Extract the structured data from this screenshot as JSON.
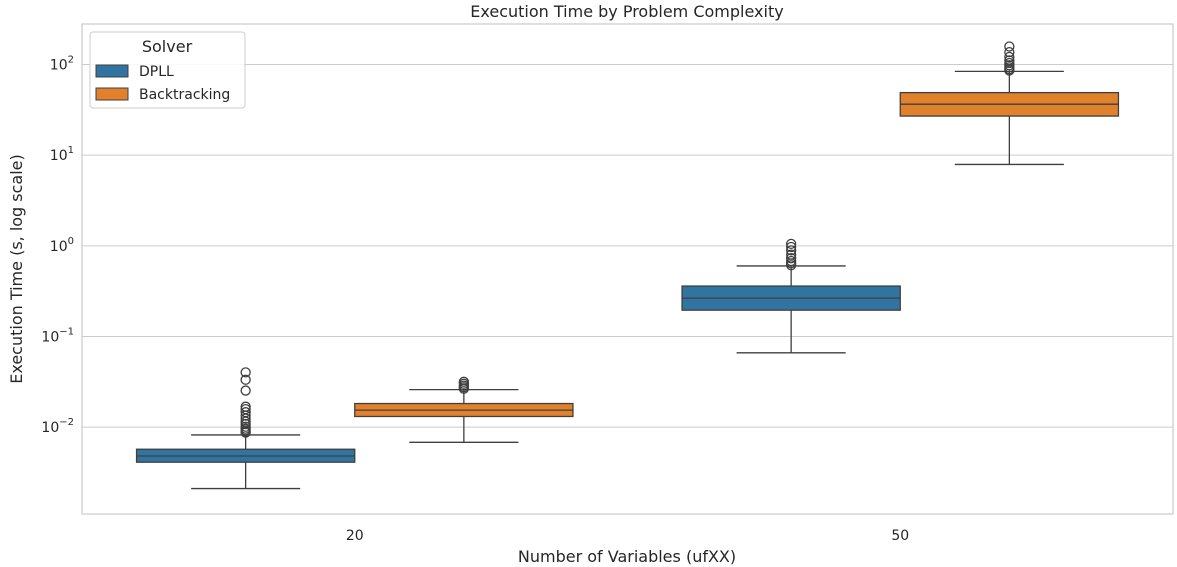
{
  "chart_data": {
    "type": "box",
    "title": "Execution Time by Problem Complexity",
    "xlabel": "Number of Variables (ufXX)",
    "ylabel": "Execution Time (s, log scale)",
    "yscale": "log",
    "ylim": [
      0.0011,
      280
    ],
    "yticks": [
      {
        "value": 0.01,
        "base": "10",
        "exp": "−2"
      },
      {
        "value": 0.1,
        "base": "10",
        "exp": "−1"
      },
      {
        "value": 1,
        "base": "10",
        "exp": "0"
      },
      {
        "value": 10,
        "base": "10",
        "exp": "1"
      },
      {
        "value": 100,
        "base": "10",
        "exp": "2"
      }
    ],
    "categories": [
      "20",
      "50"
    ],
    "grid": "horizontal",
    "legend": {
      "title": "Solver",
      "placement": "top-left"
    },
    "series": [
      {
        "name": "DPLL",
        "color": "#3274a1",
        "boxes": [
          {
            "category": "20",
            "whisker_low": 0.0021,
            "q1": 0.0041,
            "median": 0.0048,
            "q3": 0.0057,
            "whisker_high": 0.0082,
            "outliers": [
              0.0087,
              0.0089,
              0.0092,
              0.0096,
              0.0101,
              0.0108,
              0.0115,
              0.0124,
              0.0134,
              0.0146,
              0.0158,
              0.0168,
              0.0253,
              0.0333,
              0.0402
            ]
          },
          {
            "category": "50",
            "whisker_low": 0.066,
            "q1": 0.195,
            "median": 0.265,
            "q3": 0.36,
            "whisker_high": 0.6,
            "outliers": [
              0.61,
              0.64,
              0.68,
              0.73,
              0.8,
              0.89,
              0.97,
              1.05
            ]
          }
        ]
      },
      {
        "name": "Backtracking",
        "color": "#e1812c",
        "boxes": [
          {
            "category": "20",
            "whisker_low": 0.0068,
            "q1": 0.0131,
            "median": 0.0154,
            "q3": 0.0182,
            "whisker_high": 0.0259,
            "outliers": [
              0.0265,
              0.0275,
              0.0287,
              0.0301,
              0.0316
            ]
          },
          {
            "category": "50",
            "whisker_low": 7.9,
            "q1": 27,
            "median": 36.5,
            "q3": 49,
            "whisker_high": 84,
            "outliers": [
              86,
              89,
              93,
              98,
              104,
              111,
              121,
              137,
              158
            ]
          }
        ]
      }
    ]
  }
}
